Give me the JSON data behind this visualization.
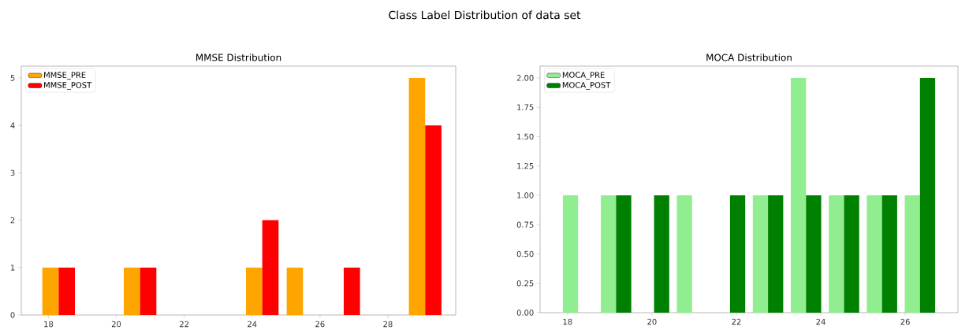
{
  "chart_data": [
    {
      "type": "histogram",
      "title": "MMSE Distribution",
      "annotations": [
        "Class Label Distribution of data set"
      ],
      "bins": [
        17.7,
        18.9,
        20.1,
        21.3,
        22.5,
        23.7,
        24.9,
        26.1,
        27.3,
        28.5,
        29.7
      ],
      "series": [
        {
          "name": "MMSE_PRE",
          "color": "#ffa500",
          "values": [
            1,
            0,
            1,
            0,
            0,
            1,
            1,
            0,
            0,
            5
          ]
        },
        {
          "name": "MMSE_POST",
          "color": "#ff0000",
          "values": [
            1,
            0,
            1,
            0,
            0,
            2,
            0,
            1,
            0,
            4
          ]
        }
      ],
      "xlim": [
        17.2,
        30.0
      ],
      "ylim": [
        0,
        5.25
      ],
      "xticks": [
        18,
        20,
        22,
        24,
        26,
        28
      ],
      "yticks": [
        0,
        1,
        2,
        3,
        4,
        5
      ],
      "legend": "top left",
      "grid": false
    },
    {
      "type": "histogram",
      "title": "MOCA Distribution",
      "bins": [
        17.8,
        18.7,
        19.6,
        20.5,
        21.4,
        22.3,
        23.2,
        24.1,
        25.0,
        25.9,
        26.8
      ],
      "series": [
        {
          "name": "MOCA_PRE",
          "color": "#90ee90",
          "values": [
            1,
            1,
            0,
            1,
            0,
            1,
            2,
            1,
            1,
            1
          ]
        },
        {
          "name": "MOCA_POST",
          "color": "#008000",
          "values": [
            0,
            1,
            1,
            0,
            1,
            1,
            1,
            1,
            1,
            2
          ]
        }
      ],
      "xlim": [
        17.35,
        27.25
      ],
      "ylim": [
        0,
        2.1
      ],
      "xticks": [
        18,
        20,
        22,
        24,
        26
      ],
      "yticks": [
        {
          "value": 0,
          "label": "0.00"
        },
        {
          "value": 0.25,
          "label": "0.25"
        },
        {
          "value": 0.5,
          "label": "0.50"
        },
        {
          "value": 0.75,
          "label": "0.75"
        },
        {
          "value": 1,
          "label": "1.00"
        },
        {
          "value": 1.25,
          "label": "1.25"
        },
        {
          "value": 1.5,
          "label": "1.50"
        },
        {
          "value": 1.75,
          "label": "1.75"
        },
        {
          "value": 2,
          "label": "2.00"
        }
      ],
      "legend": "top left",
      "grid": false
    }
  ]
}
